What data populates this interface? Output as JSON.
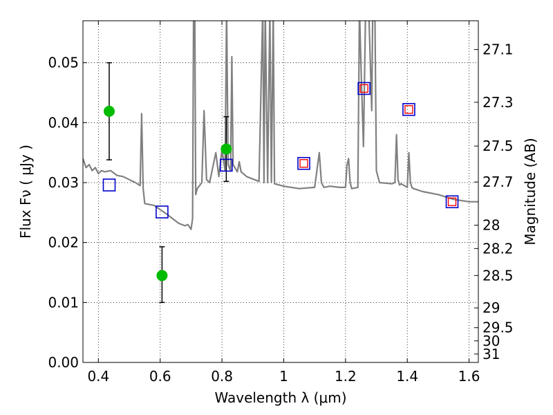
{
  "chart_data": {
    "type": "line",
    "xlabel": "Wavelength  λ (μm)",
    "ylabel": "Flux  Fν  ( μJy )",
    "ylabel_right": "Magnitude (AB)",
    "xlim": [
      0.35,
      1.63
    ],
    "ylim": [
      0.0,
      0.057
    ],
    "grid": true,
    "x_ticks": [
      0.4,
      0.6,
      0.8,
      1.0,
      1.2,
      1.4,
      1.6
    ],
    "x_tick_labels": [
      "0.4",
      "0.6",
      "0.8",
      "1",
      "1.2",
      "1.4",
      "1.6"
    ],
    "y_ticks": [
      0.0,
      0.01,
      0.02,
      0.03,
      0.04,
      0.05
    ],
    "y_tick_labels": [
      "0.00",
      "0.01",
      "0.02",
      "0.03",
      "0.04",
      "0.05"
    ],
    "mag_ticks": [
      {
        "label": "27.1",
        "value": 0.0522
      },
      {
        "label": "27.3",
        "value": 0.0434
      },
      {
        "label": "27.5",
        "value": 0.0361
      },
      {
        "label": "27.7",
        "value": 0.0301
      },
      {
        "label": "28",
        "value": 0.0229
      },
      {
        "label": "28.2",
        "value": 0.019
      },
      {
        "label": "28.5",
        "value": 0.0145
      },
      {
        "label": "29",
        "value": 0.0091
      },
      {
        "label": "29.5",
        "value": 0.0058
      },
      {
        "label": "30",
        "value": 0.0036
      },
      {
        "label": "31",
        "value": 0.0014
      }
    ],
    "series": [
      {
        "kind": "model_spectrum",
        "color": "#808080",
        "x": [
          0.35,
          0.36,
          0.37,
          0.38,
          0.39,
          0.4,
          0.41,
          0.42,
          0.44,
          0.46,
          0.48,
          0.5,
          0.52,
          0.535,
          0.54,
          0.545,
          0.55,
          0.58,
          0.6,
          0.62,
          0.64,
          0.66,
          0.68,
          0.69,
          0.7,
          0.705,
          0.708,
          0.712,
          0.715,
          0.72,
          0.735,
          0.742,
          0.75,
          0.76,
          0.78,
          0.79,
          0.8,
          0.81,
          0.815,
          0.82,
          0.828,
          0.832,
          0.836,
          0.85,
          0.856,
          0.862,
          0.88,
          0.9,
          0.92,
          0.932,
          0.936,
          0.94,
          0.948,
          0.955,
          0.96,
          0.966,
          0.97,
          1.0,
          1.05,
          1.1,
          1.115,
          1.122,
          1.13,
          1.15,
          1.18,
          1.2,
          1.205,
          1.21,
          1.215,
          1.22,
          1.24,
          1.245,
          1.252,
          1.258,
          1.265,
          1.27,
          1.275,
          1.285,
          1.288,
          1.295,
          1.3,
          1.31,
          1.35,
          1.36,
          1.365,
          1.37,
          1.375,
          1.38,
          1.4,
          1.405,
          1.41,
          1.415,
          1.42,
          1.45,
          1.5,
          1.55,
          1.6,
          1.63
        ],
        "y": [
          0.034,
          0.0325,
          0.033,
          0.032,
          0.0325,
          0.0315,
          0.032,
          0.0318,
          0.032,
          0.0312,
          0.031,
          0.0305,
          0.03,
          0.0295,
          0.0415,
          0.029,
          0.0265,
          0.0262,
          0.0255,
          0.0248,
          0.024,
          0.0232,
          0.0228,
          0.023,
          0.0222,
          0.024,
          0.058,
          0.058,
          0.028,
          0.029,
          0.03,
          0.042,
          0.0305,
          0.03,
          0.035,
          0.031,
          0.0355,
          0.032,
          0.059,
          0.033,
          0.032,
          0.051,
          0.033,
          0.0318,
          0.0335,
          0.0318,
          0.031,
          0.0306,
          0.0302,
          0.059,
          0.03,
          0.059,
          0.03,
          0.059,
          0.03,
          0.059,
          0.0298,
          0.0294,
          0.029,
          0.0292,
          0.035,
          0.03,
          0.0292,
          0.0294,
          0.0292,
          0.0292,
          0.033,
          0.034,
          0.03,
          0.029,
          0.0292,
          0.059,
          0.046,
          0.036,
          0.059,
          0.059,
          0.059,
          0.042,
          0.059,
          0.059,
          0.032,
          0.03,
          0.0298,
          0.03,
          0.038,
          0.0305,
          0.0296,
          0.0298,
          0.0292,
          0.035,
          0.03,
          0.0292,
          0.029,
          0.0285,
          0.028,
          0.0272,
          0.0268,
          0.0268
        ]
      },
      {
        "kind": "observed",
        "color": "#00bb00",
        "points": [
          {
            "x": 0.435,
            "y": 0.0419,
            "yerr_low": 0.0338,
            "yerr_high": 0.05
          },
          {
            "x": 0.606,
            "y": 0.0145,
            "yerr_low": 0.01,
            "yerr_high": 0.0193
          },
          {
            "x": 0.814,
            "y": 0.0356,
            "yerr_low": 0.0302,
            "yerr_high": 0.041
          }
        ]
      },
      {
        "kind": "model_photometry_blue",
        "color": "#0000cc",
        "x": [
          0.435,
          0.606,
          0.814,
          1.065,
          1.26,
          1.405,
          1.545
        ],
        "y": [
          0.0296,
          0.0251,
          0.0329,
          0.0332,
          0.0457,
          0.0422,
          0.0268
        ]
      },
      {
        "kind": "model_photometry_red",
        "color": "#ff0000",
        "x": [
          1.065,
          1.26,
          1.405,
          1.545
        ],
        "y": [
          0.0332,
          0.0457,
          0.0422,
          0.0268
        ]
      }
    ]
  }
}
